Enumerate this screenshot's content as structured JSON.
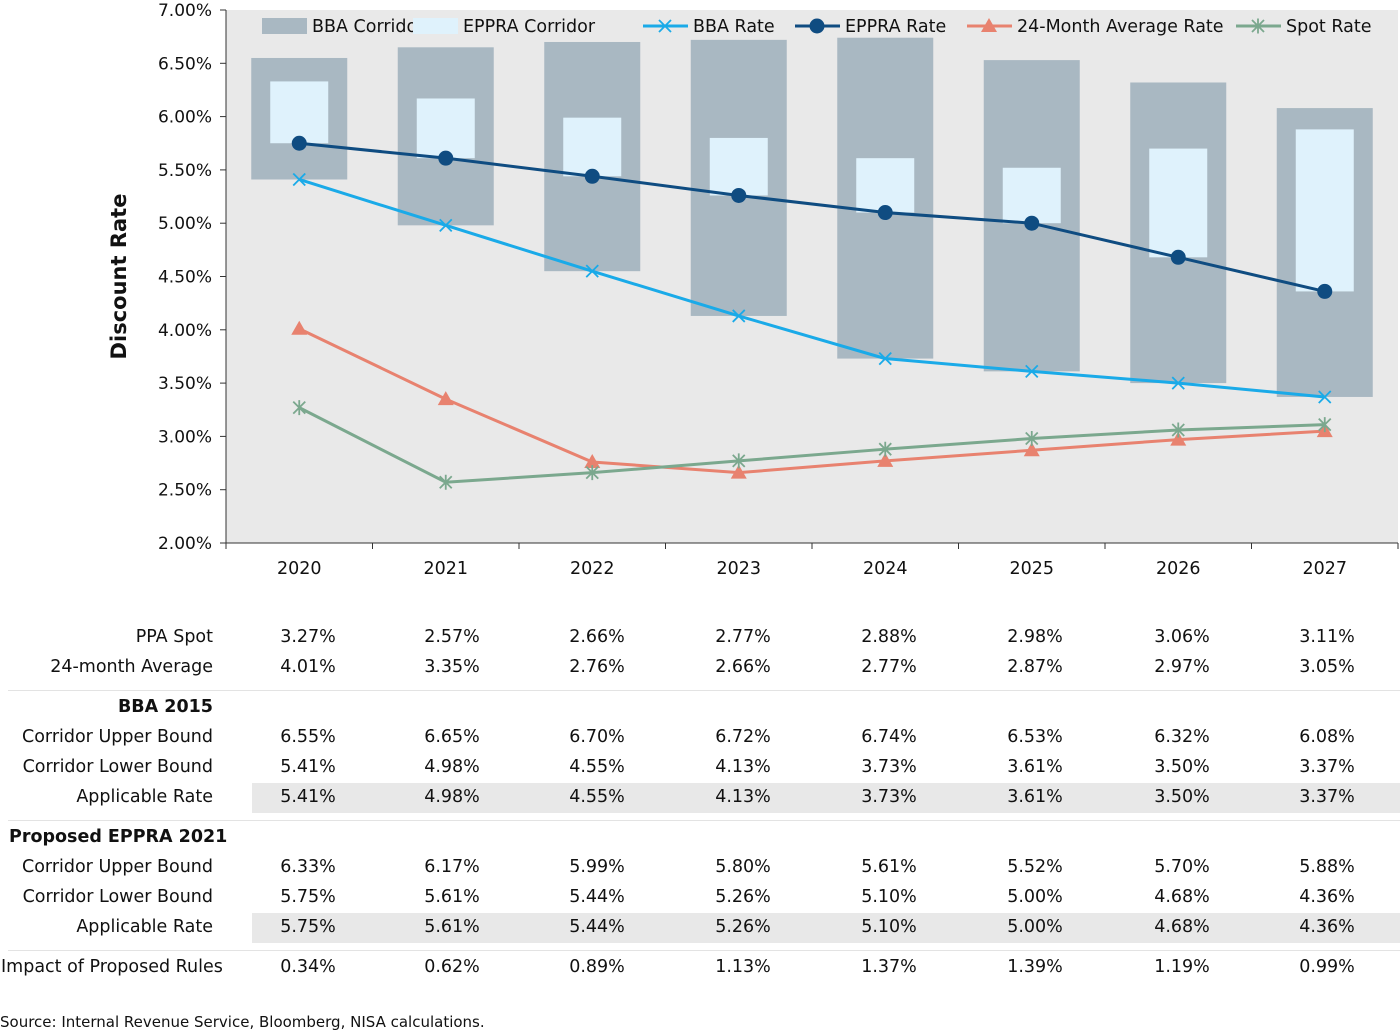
{
  "chart_data": {
    "type": "bar",
    "ylabel": "Discount Rate",
    "xlabel": "",
    "ylim": [
      2.0,
      7.0
    ],
    "y_ticks": [
      "2.00%",
      "2.50%",
      "3.00%",
      "3.50%",
      "4.00%",
      "4.50%",
      "5.00%",
      "5.50%",
      "6.00%",
      "6.50%",
      "7.00%"
    ],
    "categories": [
      "2020",
      "2021",
      "2022",
      "2023",
      "2024",
      "2025",
      "2026",
      "2027"
    ],
    "legend_position": "top",
    "grid": false,
    "plot_background": "#e9e9e9",
    "corridors": [
      {
        "name": "BBA Corridor",
        "color": "#a9b8c2",
        "upper": [
          6.55,
          6.65,
          6.7,
          6.72,
          6.74,
          6.53,
          6.32,
          6.08
        ],
        "lower": [
          5.41,
          4.98,
          4.55,
          4.13,
          3.73,
          3.61,
          3.5,
          3.37
        ]
      },
      {
        "name": "EPPRA Corridor",
        "color": "#dff2fc",
        "upper": [
          6.33,
          6.17,
          5.99,
          5.8,
          5.61,
          5.52,
          5.7,
          5.88
        ],
        "lower": [
          5.75,
          5.61,
          5.44,
          5.26,
          5.1,
          5.0,
          4.68,
          4.36
        ]
      }
    ],
    "series": [
      {
        "name": "BBA Rate",
        "color": "#1aaae8",
        "marker": "x",
        "values": [
          5.41,
          4.98,
          4.55,
          4.13,
          3.73,
          3.61,
          3.5,
          3.37
        ]
      },
      {
        "name": "EPPRA Rate",
        "color": "#0f4c81",
        "marker": "circle",
        "values": [
          5.75,
          5.61,
          5.44,
          5.26,
          5.1,
          5.0,
          4.68,
          4.36
        ]
      },
      {
        "name": "24-Month Average Rate",
        "color": "#e8826f",
        "marker": "triangle",
        "values": [
          4.01,
          3.35,
          2.76,
          2.66,
          2.77,
          2.87,
          2.97,
          3.05
        ]
      },
      {
        "name": "Spot Rate",
        "color": "#7ba88e",
        "marker": "star",
        "values": [
          3.27,
          2.57,
          2.66,
          2.77,
          2.88,
          2.98,
          3.06,
          3.11
        ]
      }
    ]
  },
  "table": {
    "rows": [
      {
        "label": "PPA Spot",
        "kind": "data",
        "values": [
          "3.27%",
          "2.57%",
          "2.66%",
          "2.77%",
          "2.88%",
          "2.98%",
          "3.06%",
          "3.11%"
        ]
      },
      {
        "label": "24-month Average",
        "kind": "data",
        "values": [
          "4.01%",
          "3.35%",
          "2.76%",
          "2.66%",
          "2.77%",
          "2.87%",
          "2.97%",
          "3.05%"
        ]
      },
      {
        "label": "BBA 2015",
        "kind": "section",
        "values": []
      },
      {
        "label": "Corridor Upper Bound",
        "kind": "data",
        "values": [
          "6.55%",
          "6.65%",
          "6.70%",
          "6.72%",
          "6.74%",
          "6.53%",
          "6.32%",
          "6.08%"
        ]
      },
      {
        "label": "Corridor Lower Bound",
        "kind": "data",
        "values": [
          "5.41%",
          "4.98%",
          "4.55%",
          "4.13%",
          "3.73%",
          "3.61%",
          "3.50%",
          "3.37%"
        ]
      },
      {
        "label": "Applicable Rate",
        "kind": "shaded",
        "values": [
          "5.41%",
          "4.98%",
          "4.55%",
          "4.13%",
          "3.73%",
          "3.61%",
          "3.50%",
          "3.37%"
        ]
      },
      {
        "label": "Proposed EPPRA 2021",
        "kind": "section-left",
        "values": []
      },
      {
        "label": "Corridor Upper Bound",
        "kind": "data",
        "values": [
          "6.33%",
          "6.17%",
          "5.99%",
          "5.80%",
          "5.61%",
          "5.52%",
          "5.70%",
          "5.88%"
        ]
      },
      {
        "label": "Corridor Lower Bound",
        "kind": "data",
        "values": [
          "5.75%",
          "5.61%",
          "5.44%",
          "5.26%",
          "5.10%",
          "5.00%",
          "4.68%",
          "4.36%"
        ]
      },
      {
        "label": "Applicable Rate",
        "kind": "shaded",
        "values": [
          "5.75%",
          "5.61%",
          "5.44%",
          "5.26%",
          "5.10%",
          "5.00%",
          "4.68%",
          "4.36%"
        ]
      },
      {
        "label": "Impact of Proposed Rules",
        "kind": "impact",
        "values": [
          "0.34%",
          "0.62%",
          "0.89%",
          "1.13%",
          "1.37%",
          "1.39%",
          "1.19%",
          "0.99%"
        ]
      }
    ]
  },
  "source": "Source: Internal Revenue Service, Bloomberg, NISA calculations."
}
